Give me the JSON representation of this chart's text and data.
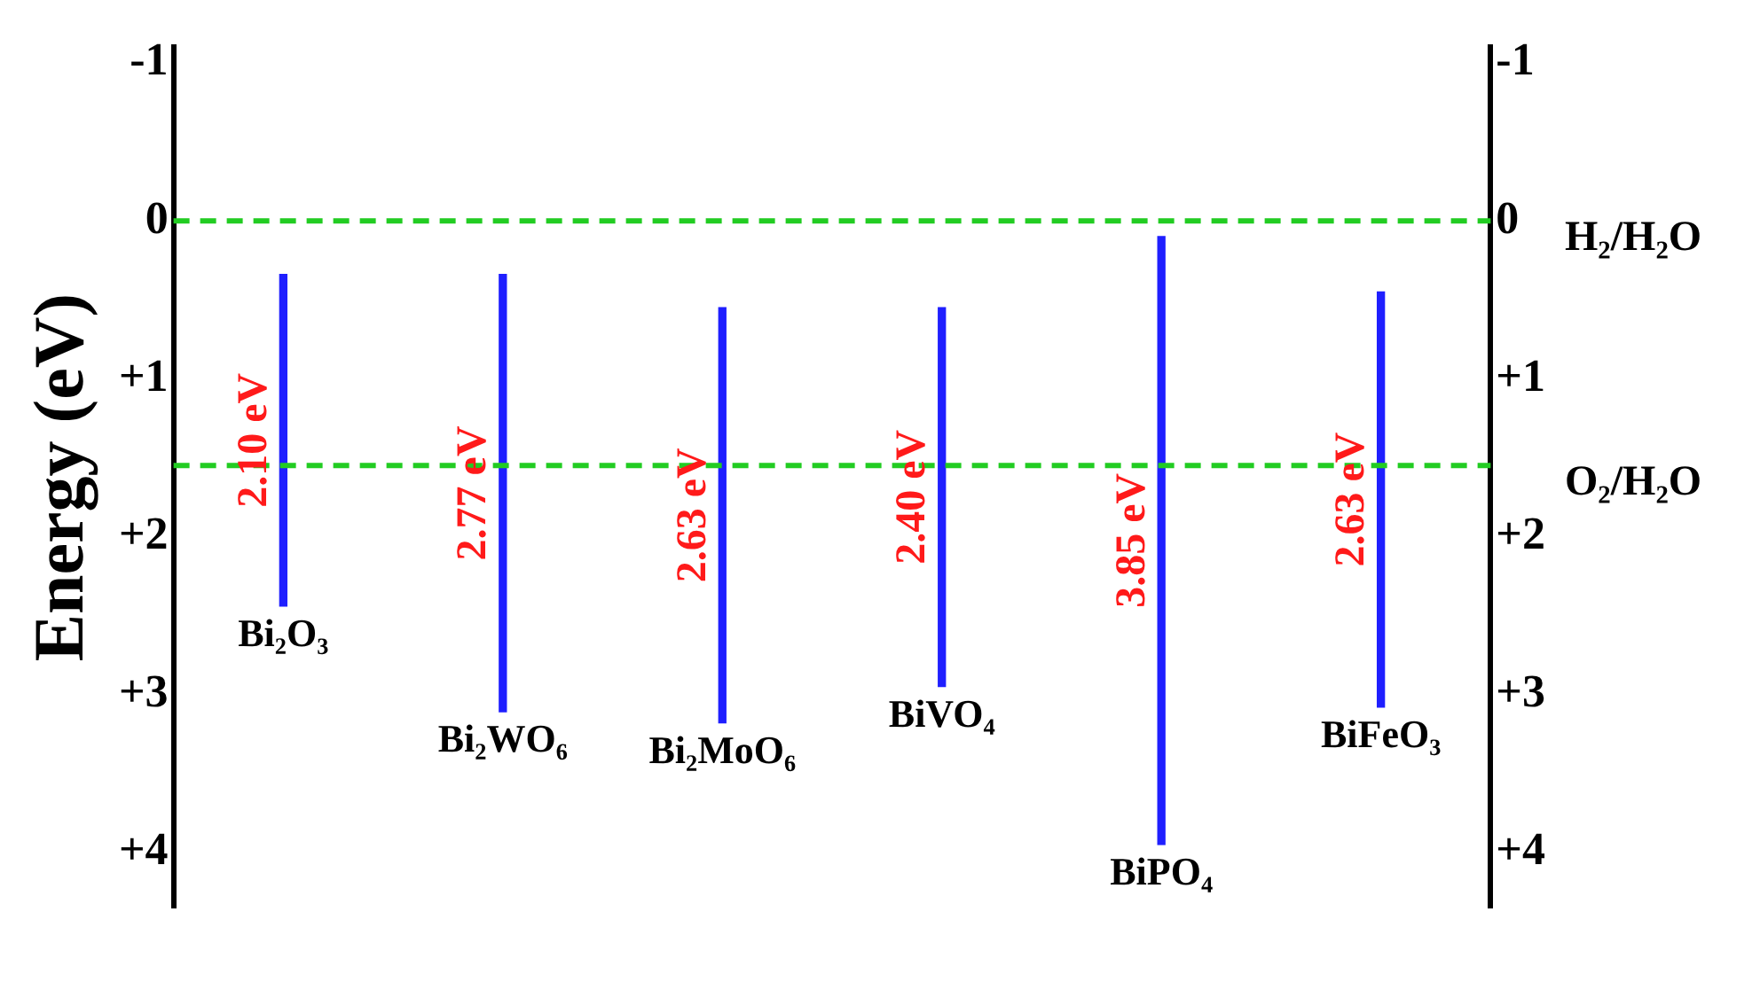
{
  "chart_data": {
    "type": "bar",
    "ylabel": "Energy (eV)",
    "categories": [
      "Bi₂O₃",
      "Bi₂WO₆",
      "Bi₂MoO₆",
      "BiVO₄",
      "BiPO₄",
      "BiFeO₃"
    ],
    "base": [
      0.34,
      0.34,
      0.55,
      0.55,
      0.1,
      0.45
    ],
    "values": [
      2.1,
      2.77,
      2.63,
      2.4,
      3.85,
      2.63
    ],
    "value_labels": [
      "2.10 eV",
      "2.77 eV",
      "2.63 eV",
      "2.40 eV",
      "3.85 eV",
      "2.63 eV"
    ],
    "color": "#1f1fff",
    "ylim": [
      4.35,
      -1.1
    ],
    "yticks": [
      {
        "value": -1,
        "label": "-1"
      },
      0,
      {
        "value": 1,
        "label": "+1"
      },
      {
        "value": 2,
        "label": "+2"
      },
      {
        "value": 3,
        "label": "+3"
      },
      {
        "value": 4,
        "label": "+4"
      }
    ],
    "y2lim": [
      4.35,
      -1.1
    ],
    "y2ticks": [
      {
        "value": -1,
        "label": "-1"
      },
      0,
      {
        "value": 1,
        "label": "+1"
      },
      {
        "value": 2,
        "label": "+2"
      },
      {
        "value": 3,
        "label": "+3"
      },
      {
        "value": 4,
        "label": "+4"
      }
    ],
    "ref_lines": [
      {
        "axis": "y2",
        "value": 0,
        "label": "H₂/H₂O",
        "color": "#22cc22",
        "line_style": "dashed"
      },
      {
        "axis": "y2",
        "value": 1.55,
        "label": "O₂/H₂O",
        "color": "#22cc22",
        "line_style": "dashed"
      }
    ],
    "grid": false,
    "legend": false
  }
}
